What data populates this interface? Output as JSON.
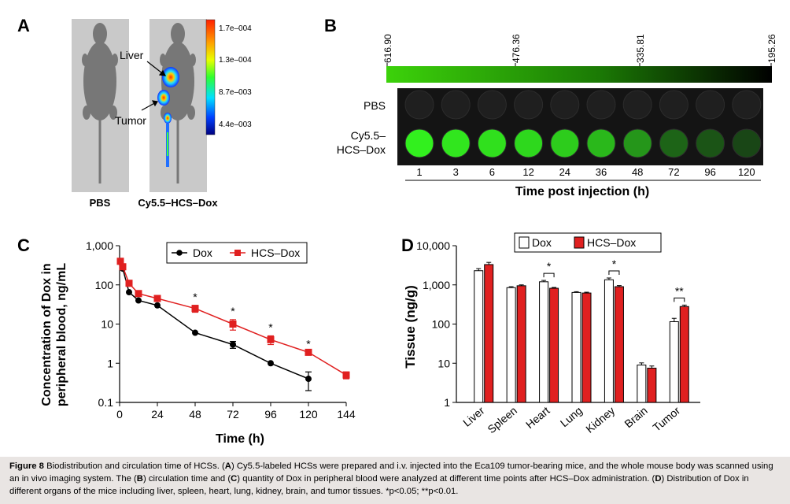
{
  "panels": {
    "a": "A",
    "b": "B",
    "c": "C",
    "d": "D"
  },
  "panel_a": {
    "mouse_labels": [
      "PBS",
      "Cy5.5–HCS–Dox"
    ],
    "arrow_labels": [
      "Liver",
      "Tumor"
    ],
    "colorbar_ticks": [
      "1.7e–004",
      "1.3e–004",
      "8.7e–003",
      "4.4e–003"
    ]
  },
  "panel_b": {
    "gradient_ticks": [
      "616.90",
      "476.36",
      "335.81",
      "195.26"
    ],
    "row_labels": [
      "PBS",
      "Cy5.5–",
      "HCS–Dox"
    ],
    "times": [
      "1",
      "3",
      "6",
      "12",
      "24",
      "36",
      "48",
      "72",
      "96",
      "120"
    ],
    "xlabel": "Time post injection (h)"
  },
  "chart_data": [
    {
      "panel": "C",
      "type": "line",
      "yscale": "log",
      "title": "",
      "xlabel": "Time (h)",
      "ylabel_line1": "Concentration of Dox in",
      "ylabel_line2": "peripheral blood, ng/mL",
      "xticks": [
        "0",
        "24",
        "48",
        "72",
        "96",
        "120",
        "144"
      ],
      "yticks": [
        "1,000",
        "100",
        "10",
        "1",
        "0.1"
      ],
      "xlim": [
        0,
        144
      ],
      "ylim": [
        0.1,
        1000
      ],
      "legend": [
        "Dox",
        "HCS–Dox"
      ],
      "series": [
        {
          "name": "Dox",
          "color": "#000000",
          "marker": "circle",
          "x": [
            0.5,
            2,
            6,
            12,
            24,
            48,
            72,
            96,
            120
          ],
          "y": [
            380,
            260,
            65,
            40,
            30,
            6,
            3,
            1,
            0.4
          ],
          "err": [
            0,
            0,
            0,
            0,
            0,
            0,
            0.6,
            0,
            0.2
          ]
        },
        {
          "name": "HCS–Dox",
          "color": "#e02020",
          "marker": "square",
          "x": [
            0.5,
            2,
            6,
            12,
            24,
            48,
            72,
            96,
            120,
            144
          ],
          "y": [
            400,
            290,
            110,
            60,
            45,
            25,
            10,
            4,
            1.9,
            0.5
          ],
          "err": [
            0,
            0,
            0,
            0,
            0,
            5,
            3,
            1,
            0,
            0.1
          ]
        }
      ],
      "significance": [
        {
          "x": 48,
          "label": "*"
        },
        {
          "x": 72,
          "label": "*"
        },
        {
          "x": 96,
          "label": "*"
        },
        {
          "x": 120,
          "label": "*"
        }
      ]
    },
    {
      "panel": "D",
      "type": "bar",
      "yscale": "log",
      "ylabel": "Tissue (ng/g)",
      "yticks": [
        "10,000",
        "1,000",
        "100",
        "10",
        "1"
      ],
      "ylim": [
        1,
        10000
      ],
      "categories": [
        "Liver",
        "Spleen",
        "Heart",
        "Lung",
        "Kidney",
        "Brain",
        "Tumor"
      ],
      "legend": [
        "Dox",
        "HCS–Dox"
      ],
      "series": [
        {
          "name": "Dox",
          "color": "#ffffff",
          "values": [
            2300,
            850,
            1200,
            640,
            1350,
            9,
            115
          ],
          "err": [
            300,
            50,
            100,
            30,
            150,
            1.2,
            25
          ]
        },
        {
          "name": "HCS–Dox",
          "color": "#e02020",
          "values": [
            3300,
            950,
            820,
            620,
            900,
            7.5,
            280
          ],
          "err": [
            450,
            50,
            40,
            30,
            60,
            1,
            25
          ]
        }
      ],
      "significance": [
        {
          "category": "Heart",
          "label": "*"
        },
        {
          "category": "Kidney",
          "label": "*"
        },
        {
          "category": "Tumor",
          "label": "**"
        }
      ]
    }
  ],
  "caption": {
    "label": "Figure 8",
    "title": "Biodistribution and circulation time of HCSs.",
    "text_a": "Cy5.5-labeled HCSs were prepared and i.v. injected into the Eca109 tumor-bearing mice, and the whole mouse body was scanned using an in vivo imaging system. The",
    "text_b": "circulation time and",
    "text_c": "quantity of Dox in peripheral blood were analyzed at different time points after HCS–Dox administration.",
    "text_d": "Distribution of Dox in different organs of the mice including liver, spleen, heart, lung, kidney, brain, and tumor tissues.",
    "sig": "*p<0.05; **p<0.01."
  }
}
